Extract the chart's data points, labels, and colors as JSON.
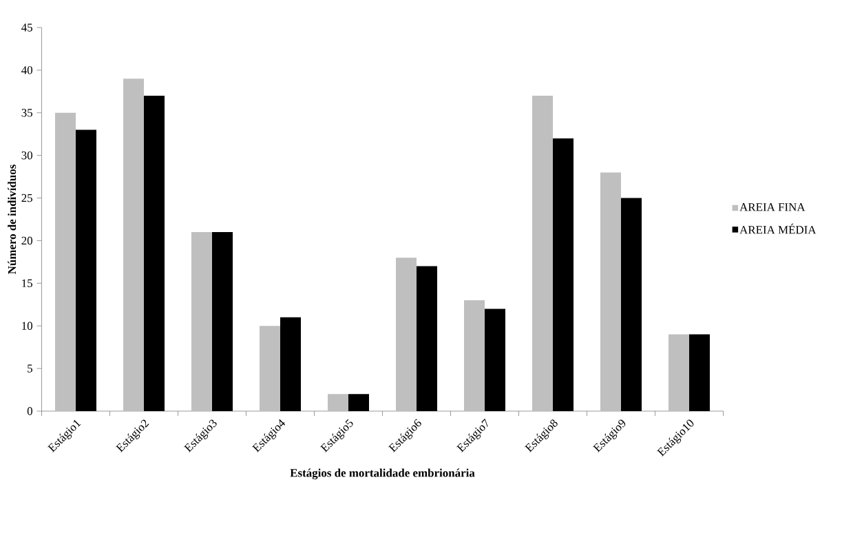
{
  "chart_data": {
    "type": "bar",
    "xlabel": "Estágios de mortalidade embrionária",
    "ylabel": "Número de  indivíduos",
    "categories": [
      "Estágio1",
      "Estágio2",
      "Estágio3",
      "Estágio4",
      "Estágio5",
      "Estágio6",
      "Estágio7",
      "Estágio8",
      "Estágio9",
      "Estágio10"
    ],
    "series": [
      {
        "name": "AREIA FINA",
        "color": "#bfbfbf",
        "values": [
          35,
          39,
          21,
          10,
          2,
          18,
          13,
          37,
          28,
          9
        ]
      },
      {
        "name": "AREIA MÉDIA",
        "color": "#000000",
        "values": [
          33,
          37,
          21,
          11,
          2,
          17,
          12,
          32,
          25,
          9
        ]
      }
    ],
    "ylim": [
      0,
      45
    ],
    "yticks": [
      0,
      5,
      10,
      15,
      20,
      25,
      30,
      35,
      40,
      45
    ],
    "grid": false,
    "legend": "right"
  }
}
